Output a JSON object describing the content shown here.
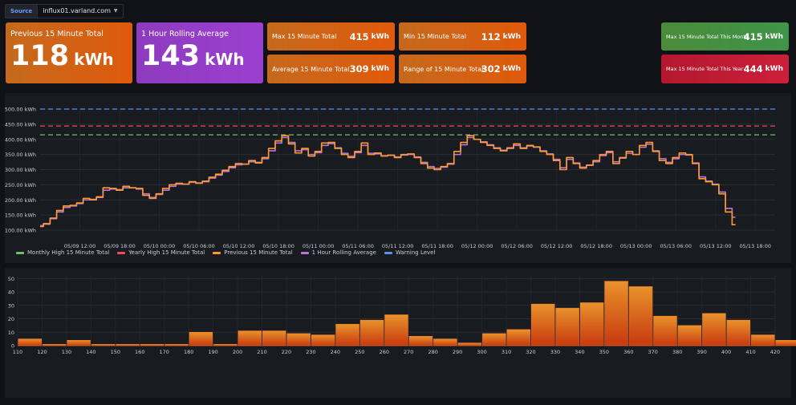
{
  "header": {
    "source_label": "Source",
    "source_value": "influx01.varland.com"
  },
  "stats": {
    "prev15": {
      "title": "Previous 15 Minute Total",
      "value": "118",
      "unit": "kWh"
    },
    "rolling": {
      "title": "1 Hour Rolling Average",
      "value": "143",
      "unit": "kWh"
    },
    "max15": {
      "title": "Max 15 Minute Total",
      "value": "415",
      "unit": "kWh"
    },
    "min15": {
      "title": "Min 15 Minute Total",
      "value": "112",
      "unit": "kWh"
    },
    "avg15": {
      "title": "Average 15 Minute Total",
      "value": "309",
      "unit": "kWh"
    },
    "range15": {
      "title": "Range of 15 Minute Totals",
      "value": "302",
      "unit": "kWh"
    },
    "month_max": {
      "title": "Max 15 Minute Total This Month",
      "value": "415",
      "unit": "kWh"
    },
    "year_max": {
      "title": "Max 15 Minute Total This Year",
      "value": "444",
      "unit": "kWh"
    }
  },
  "colors": {
    "monthly": "#73bf69",
    "yearly": "#f2495c",
    "previous": "#ff9830",
    "rolling": "#b877d9",
    "warning": "#5794f2",
    "bar": "#e35d16"
  },
  "legend": [
    {
      "label": "Monthly High 15 Minute Total",
      "color": "#73bf69"
    },
    {
      "label": "Yearly High 15 Minute Total",
      "color": "#f2495c"
    },
    {
      "label": "Previous 15 Minute Total",
      "color": "#ff9830"
    },
    {
      "label": "1 Hour Rolling Average",
      "color": "#b877d9"
    },
    {
      "label": "Warning Level",
      "color": "#5794f2"
    }
  ],
  "chart_data": [
    {
      "type": "line",
      "y_ticks": [
        "100.00 kWh",
        "150.00 kWh",
        "200.00 kWh",
        "250.00 kWh",
        "300.00 kWh",
        "350.00 kWh",
        "400.00 kWh",
        "450.00 kWh",
        "500.00 kWh"
      ],
      "ylim": [
        100,
        500
      ],
      "x_ticks": [
        "05/09 12:00",
        "05/09 18:00",
        "05/10 00:00",
        "05/10 06:00",
        "05/10 12:00",
        "05/10 18:00",
        "05/11 00:00",
        "05/11 06:00",
        "05/11 12:00",
        "05/11 18:00",
        "05/12 00:00",
        "05/12 06:00",
        "05/12 12:00",
        "05/12 18:00",
        "05/13 00:00",
        "05/13 06:00",
        "05/13 12:00",
        "05/13 18:00"
      ],
      "x_tick_hours": [
        0,
        6,
        12,
        18,
        24,
        30,
        36,
        42,
        48,
        54,
        60,
        66,
        72,
        78,
        84,
        90,
        96,
        102
      ],
      "thresholds": {
        "monthly": 415,
        "yearly": 444,
        "warning": 500
      },
      "series_hours": [
        -6,
        -5,
        -4,
        -3,
        -2,
        -1,
        0,
        1,
        2,
        3,
        4,
        5,
        6,
        7,
        8,
        9,
        10,
        11,
        12,
        13,
        14,
        15,
        16,
        17,
        18,
        19,
        20,
        21,
        22,
        23,
        24,
        25,
        26,
        27,
        28,
        29,
        30,
        31,
        32,
        33,
        34,
        35,
        36,
        37,
        38,
        39,
        40,
        41,
        42,
        43,
        44,
        45,
        46,
        47,
        48,
        49,
        50,
        51,
        52,
        53,
        54,
        55,
        56,
        57,
        58,
        59,
        60,
        61,
        62,
        63,
        64,
        65,
        66,
        67,
        68,
        69,
        70,
        71,
        72,
        73,
        74,
        75,
        76,
        77,
        78,
        79,
        80,
        81,
        82,
        83,
        84,
        85,
        86,
        87,
        88,
        89,
        90,
        91,
        92,
        93,
        94,
        95,
        96,
        97,
        98,
        99,
        100,
        101,
        102,
        103,
        104,
        105
      ],
      "series": [
        {
          "name": "Previous 15 Minute Total",
          "values": [
            112,
            120,
            140,
            165,
            180,
            182,
            190,
            205,
            200,
            210,
            240,
            238,
            232,
            245,
            240,
            238,
            215,
            205,
            220,
            238,
            250,
            255,
            252,
            260,
            255,
            262,
            275,
            285,
            298,
            310,
            320,
            318,
            330,
            322,
            340,
            370,
            395,
            412,
            385,
            355,
            370,
            345,
            360,
            388,
            390,
            370,
            350,
            340,
            360,
            388,
            350,
            355,
            345,
            348,
            340,
            350,
            352,
            340,
            320,
            305,
            300,
            310,
            320,
            360,
            390,
            412,
            400,
            390,
            380,
            370,
            362,
            372,
            385,
            370,
            380,
            375,
            360,
            350,
            330,
            300,
            340,
            320,
            305,
            315,
            330,
            350,
            360,
            320,
            340,
            360,
            350,
            380,
            390,
            360,
            330,
            320,
            340,
            355,
            350,
            320,
            270,
            260,
            250,
            220,
            160,
            118
          ]
        },
        {
          "name": "1 Hour Rolling Average",
          "values": [
            115,
            122,
            138,
            160,
            175,
            180,
            188,
            200,
            202,
            208,
            232,
            236,
            234,
            240,
            240,
            236,
            220,
            208,
            218,
            232,
            245,
            252,
            252,
            258,
            256,
            260,
            272,
            282,
            294,
            306,
            316,
            318,
            326,
            324,
            336,
            362,
            388,
            406,
            390,
            362,
            366,
            350,
            356,
            380,
            386,
            372,
            354,
            344,
            356,
            380,
            354,
            352,
            346,
            347,
            342,
            348,
            350,
            342,
            324,
            310,
            304,
            308,
            318,
            350,
            382,
            406,
            400,
            392,
            382,
            372,
            364,
            370,
            380,
            372,
            378,
            374,
            362,
            352,
            334,
            306,
            334,
            322,
            308,
            314,
            326,
            346,
            356,
            326,
            338,
            354,
            350,
            374,
            384,
            362,
            336,
            324,
            336,
            350,
            348,
            322,
            276,
            262,
            252,
            226,
            172,
            143
          ]
        }
      ]
    },
    {
      "type": "bar",
      "x_ticks": [
        110,
        120,
        130,
        140,
        150,
        160,
        170,
        180,
        190,
        200,
        210,
        220,
        230,
        240,
        250,
        260,
        270,
        280,
        290,
        300,
        310,
        320,
        330,
        340,
        350,
        360,
        370,
        380,
        390,
        400,
        410,
        420
      ],
      "y_ticks": [
        0,
        10,
        20,
        30,
        40,
        50
      ],
      "ylim": [
        0,
        52
      ],
      "values": [
        5,
        1,
        4,
        1,
        1,
        1,
        1,
        10,
        1,
        11,
        11,
        9,
        8,
        16,
        19,
        23,
        7,
        5,
        2,
        9,
        12,
        31,
        28,
        32,
        48,
        44,
        22,
        15,
        24,
        19,
        8,
        4
      ]
    }
  ]
}
